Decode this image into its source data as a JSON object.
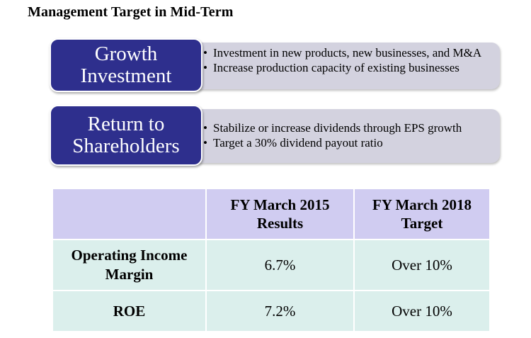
{
  "title": "Management Target in Mid-Term",
  "strategies": [
    {
      "label_line1": "Growth",
      "label_line2": "Investment",
      "bullets": [
        "Investment in new products, new businesses, and M&A",
        "Increase production capacity of existing businesses"
      ]
    },
    {
      "label_line1": "Return to",
      "label_line2": "Shareholders",
      "bullets": [
        "Stabilize or increase dividends through EPS growth",
        "Target a 30% dividend payout ratio"
      ]
    }
  ],
  "table": {
    "headers": [
      "",
      {
        "line1": "FY March 2015",
        "line2": "Results"
      },
      {
        "line1": "FY March 2018",
        "line2": "Target"
      }
    ],
    "rows": [
      {
        "label_line1": "Operating Income",
        "label_line2": "Margin",
        "results": "6.7%",
        "target": "Over 10%"
      },
      {
        "label_line1": "ROE",
        "label_line2": "",
        "results": "7.2%",
        "target": "Over 10%"
      }
    ]
  },
  "colors": {
    "label_box": "#2e2f8d",
    "panel": "#d3d2df",
    "table_header": "#d0ccf1",
    "table_body": "#dbefec"
  }
}
